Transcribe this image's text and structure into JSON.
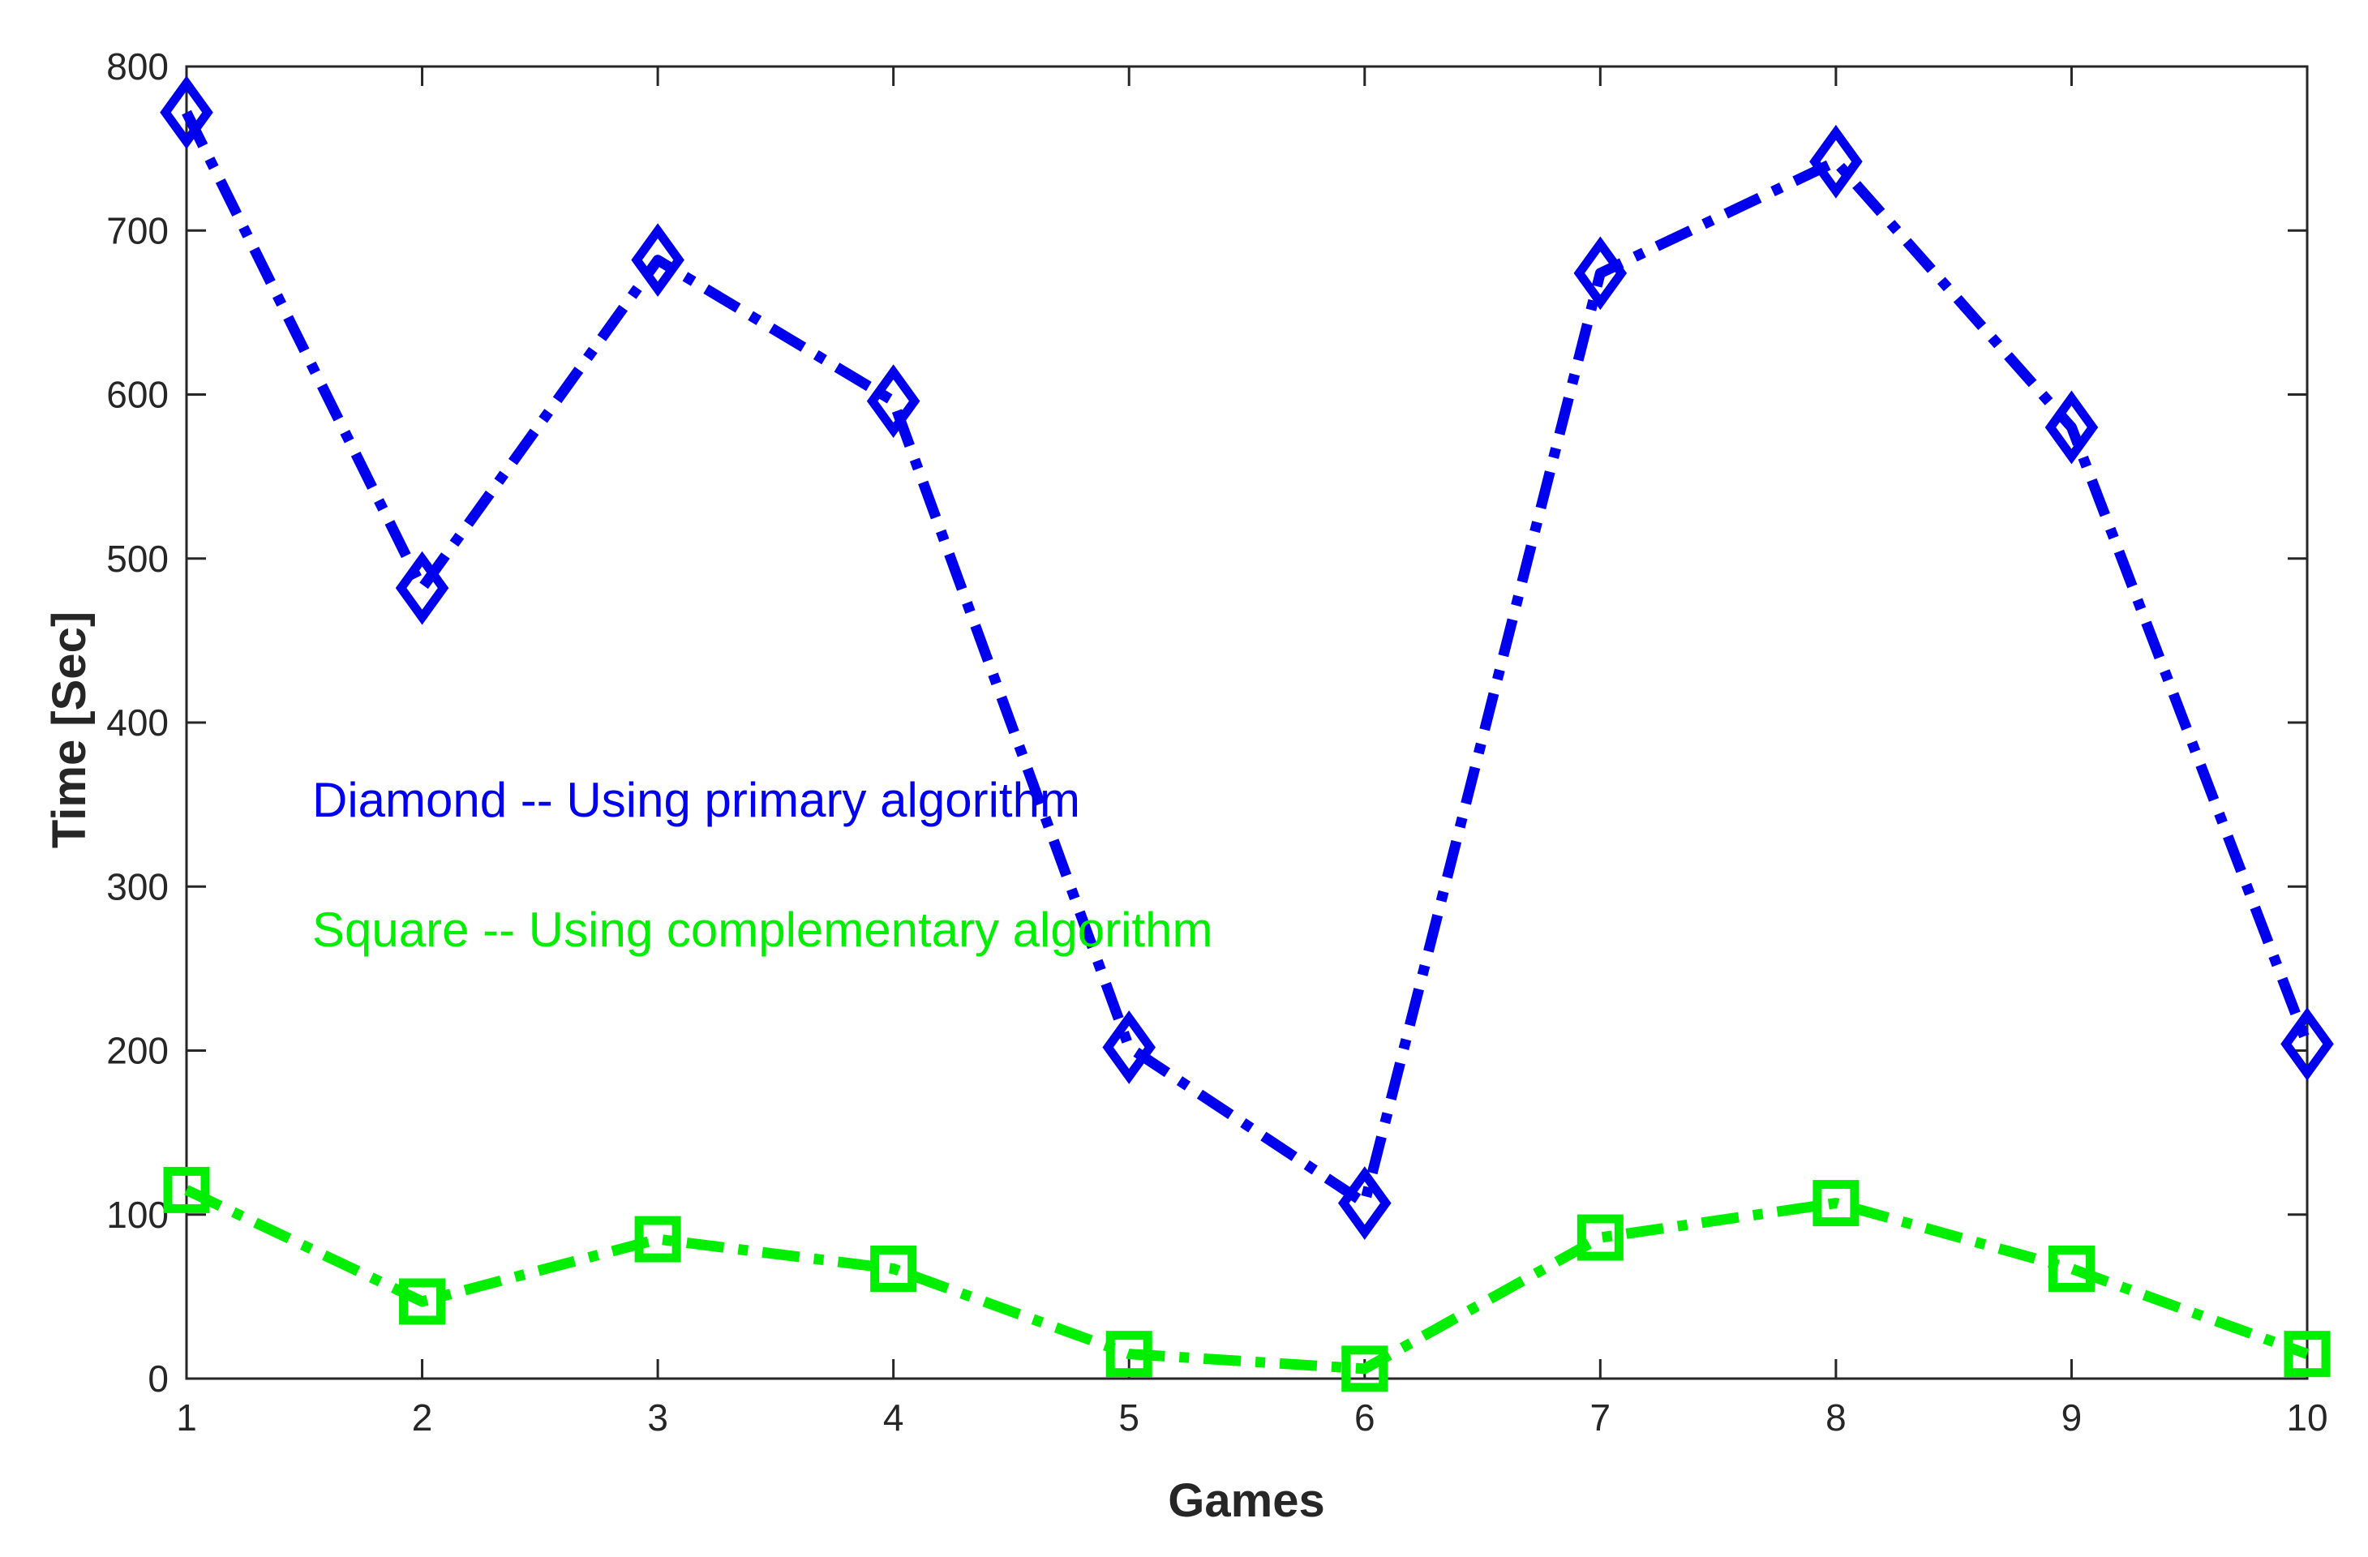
{
  "chart_data": {
    "type": "line",
    "xlabel": "Games",
    "ylabel": "Time [Sec]",
    "xlim": [
      1,
      10
    ],
    "ylim": [
      0,
      800
    ],
    "x_ticks": [
      "1",
      "2",
      "3",
      "4",
      "5",
      "6",
      "7",
      "8",
      "9",
      "10"
    ],
    "y_ticks": [
      "0",
      "100",
      "200",
      "300",
      "400",
      "500",
      "600",
      "700",
      "800"
    ],
    "x": [
      1,
      2,
      3,
      4,
      5,
      6,
      7,
      8,
      9,
      10
    ],
    "series": [
      {
        "name": "Diamond",
        "marker": "diamond",
        "line_style": "dash-dot",
        "color": "#0000ee",
        "values": [
          772,
          482,
          682,
          596,
          202,
          107,
          674,
          742,
          580,
          204
        ]
      },
      {
        "name": "Square",
        "marker": "square",
        "line_style": "dash-dot",
        "color": "#00ee00",
        "values": [
          115,
          47,
          85,
          67,
          15,
          6,
          86,
          107,
          67,
          15
        ]
      }
    ],
    "annotations": [
      {
        "text": "Diamond -- Using primary algorithm",
        "color": "#0000ee"
      },
      {
        "text": "Square -- Using complementary algorithm",
        "color": "#00ee00"
      }
    ],
    "grid": false
  }
}
